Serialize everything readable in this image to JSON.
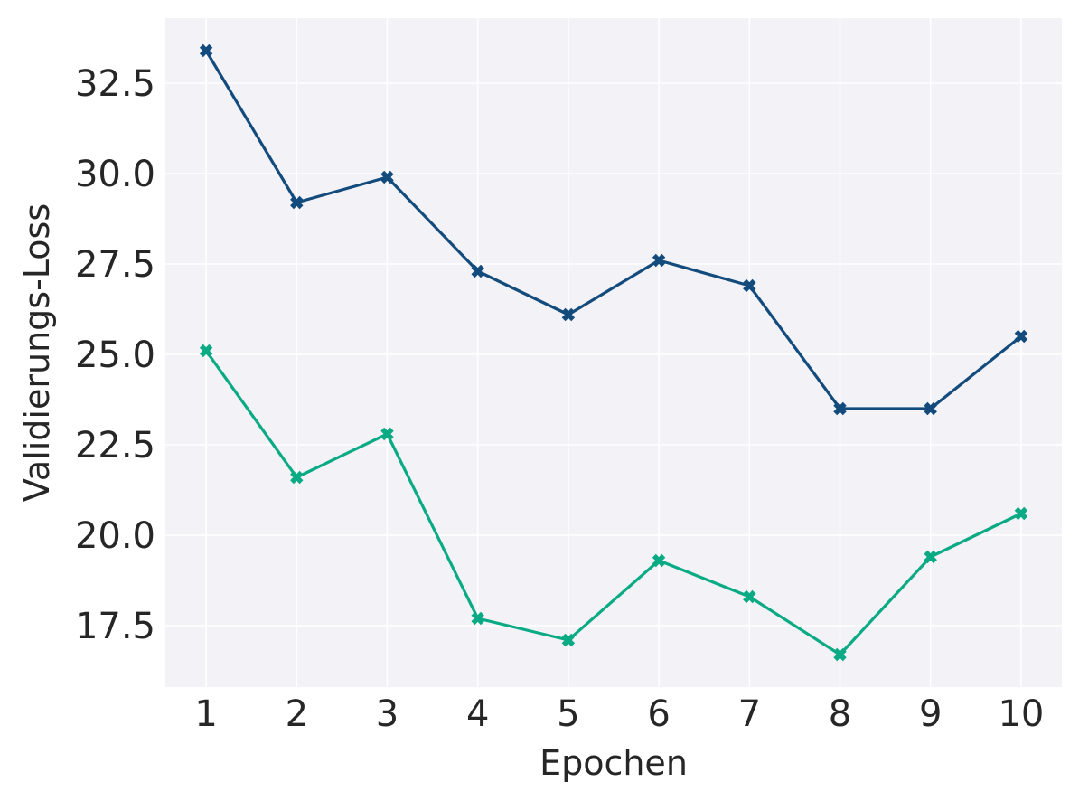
{
  "chart_data": {
    "type": "line",
    "title": "",
    "xlabel": "Epochen",
    "ylabel": "Validierungs-Loss",
    "x": [
      1,
      2,
      3,
      4,
      5,
      6,
      7,
      8,
      9,
      10
    ],
    "x_tick_labels": [
      "1",
      "2",
      "3",
      "4",
      "5",
      "6",
      "7",
      "8",
      "9",
      "10"
    ],
    "y_tick_values": [
      17.5,
      20.0,
      22.5,
      25.0,
      27.5,
      30.0,
      32.5
    ],
    "y_tick_labels": [
      "17.5",
      "20.0",
      "22.5",
      "25.0",
      "27.5",
      "30.0",
      "32.5"
    ],
    "xlim": [
      0.55,
      10.45
    ],
    "ylim": [
      15.8,
      34.3
    ],
    "grid": true,
    "background": "#f2f2f7",
    "grid_color": "#ffffff",
    "marker": "X",
    "series": [
      {
        "name": "Serie 1",
        "color": "#134b7d",
        "values": [
          33.4,
          29.2,
          29.9,
          27.3,
          26.1,
          27.6,
          26.9,
          23.5,
          23.5,
          25.5
        ]
      },
      {
        "name": "Serie 2",
        "color": "#0aaa84",
        "values": [
          25.1,
          21.6,
          22.8,
          17.7,
          17.1,
          19.3,
          18.3,
          16.7,
          19.4,
          20.6
        ]
      }
    ]
  }
}
